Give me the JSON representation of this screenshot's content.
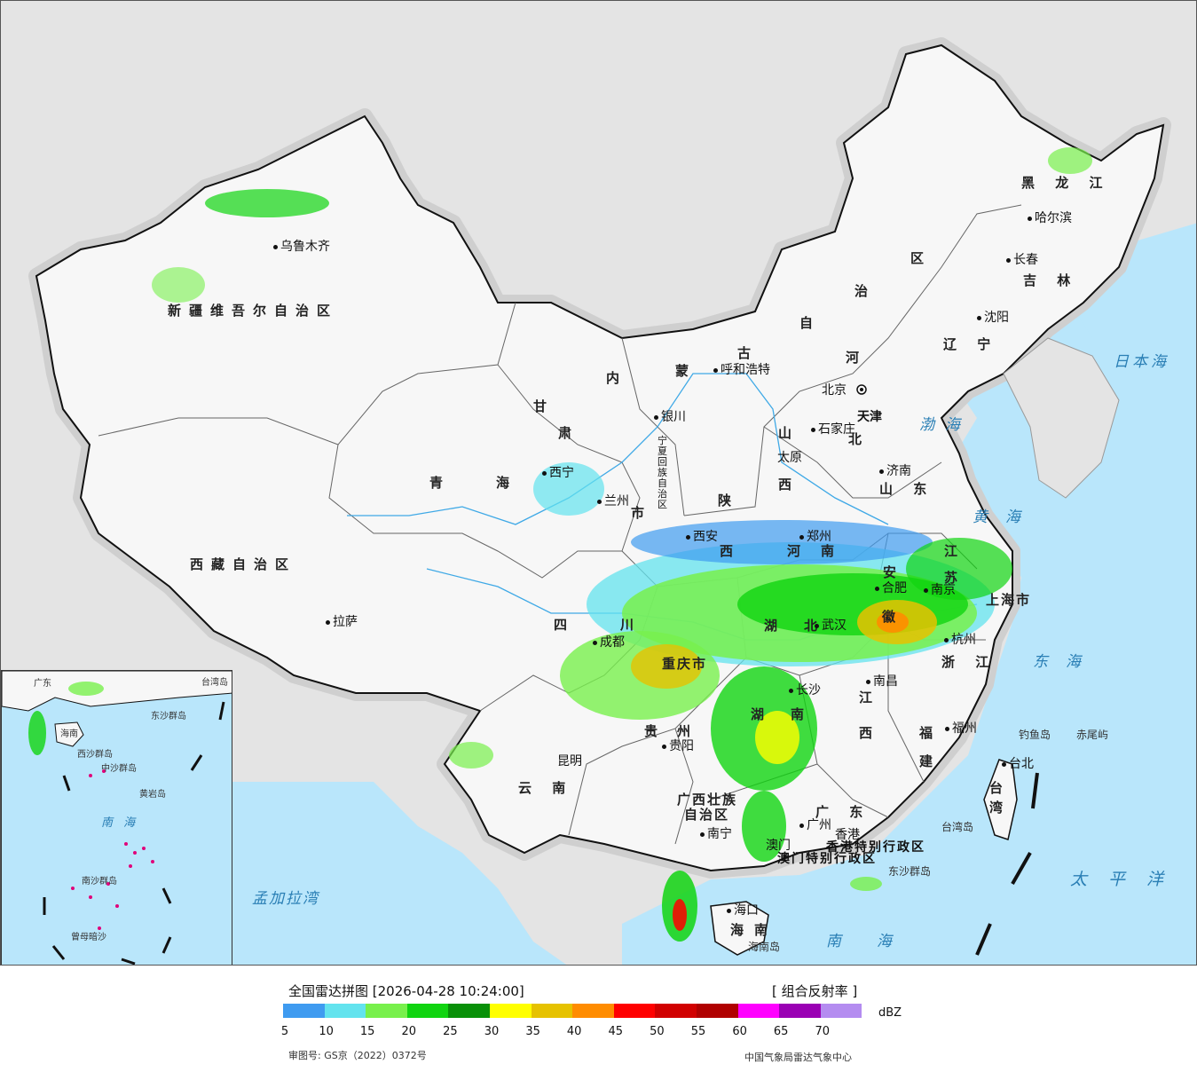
{
  "legend": {
    "title": "全国雷达拼图 [2026-04-28 10:24:00]",
    "product": "[ 组合反射率 ]",
    "unit": "dBZ",
    "colors": [
      "#3f9bf0",
      "#63e3ee",
      "#78f04c",
      "#10d410",
      "#089008",
      "#ffff00",
      "#e6c200",
      "#ff8c00",
      "#ff0000",
      "#d10000",
      "#b00000",
      "#ff00ff",
      "#9a00b4",
      "#b48cf0"
    ],
    "ticks": [
      "5",
      "10",
      "15",
      "20",
      "25",
      "30",
      "35",
      "40",
      "45",
      "50",
      "55",
      "60",
      "65",
      "70"
    ],
    "review_no": "审图号: GS京（2022）0372号",
    "source": "中国气象局雷达气象中心"
  },
  "regions": {
    "xinjiang": "新疆维吾尔自治区",
    "xizang": "西藏自治区",
    "qinghai_a": "青",
    "qinghai_b": "海",
    "gansu_a": "甘",
    "gansu_b": "肃",
    "neimenggu_a": "内",
    "neimenggu_b": "蒙",
    "neimenggu_c": "古",
    "neimenggu_d": "自",
    "neimenggu_e": "治",
    "neimenggu_f": "区",
    "heilongjiang": "黑 龙 江",
    "jilin": "吉 林",
    "liaoning": "辽 宁",
    "hebei_a": "河",
    "hebei_b": "北",
    "shanxi_a": "山",
    "shanxi_b": "西",
    "shandong": "山 东",
    "shaanxi_a": "陕",
    "shaanxi_b": "西",
    "henan_a": "河",
    "henan_b": "南",
    "sichuan_a": "四",
    "sichuan_b": "川",
    "chongqing": "重庆市",
    "hubei_a": "湖",
    "hubei_b": "北",
    "anhui_a": "安",
    "anhui_b": "徽",
    "jiangsu_a": "江",
    "jiangsu_b": "苏",
    "shanghai": "上海市",
    "zhejiang": "浙 江",
    "jiangxi_a": "江",
    "jiangxi_b": "西",
    "hunan_a": "湖",
    "hunan_b": "南",
    "guizhou_a": "贵",
    "guizhou_b": "州",
    "yunnan": "云 南",
    "guangxi_a": "广西壮族",
    "guangxi_b": "自治区",
    "guangdong": "广 东",
    "fujian_a": "福",
    "fujian_b": "建",
    "taiwan_a": "台",
    "taiwan_b": "湾",
    "hainan_a": "海",
    "hainan_b": "南",
    "ningxia": "宁夏回族自治区",
    "hk": "香港特别行政区",
    "macau": "澳门特别行政区",
    "tianjin": "天津",
    "gansu_c": "市"
  },
  "cities": {
    "urumqi": "乌鲁木齐",
    "lhasa": "拉萨",
    "xining": "西宁",
    "lanzhou": "兰州",
    "yinchuan": "银川",
    "hohhot": "呼和浩特",
    "harbin": "哈尔滨",
    "changchun": "长春",
    "shenyang": "沈阳",
    "beijing": "北京",
    "shijiazhuang": "石家庄",
    "taiyuan": "太原",
    "jinan": "济南",
    "xian": "西安",
    "zhengzhou": "郑州",
    "chengdu": "成都",
    "wuhan": "武汉",
    "hefei": "合肥",
    "nanjing": "南京",
    "hangzhou": "杭州",
    "nanchang": "南昌",
    "changsha": "长沙",
    "guiyang": "贵阳",
    "kunming": "昆明",
    "nanning": "南宁",
    "guangzhou": "广州",
    "fuzhou": "福州",
    "taibei": "台北",
    "haikou": "海口",
    "hongkong": "香港",
    "macao": "澳门"
  },
  "seas": {
    "japan_sea": "日本海",
    "bohai": "渤海",
    "yellow_sea": "黄海",
    "east_sea": "东海",
    "pacific": "太平洋",
    "south_sea": "南海",
    "bengal": "孟加拉湾"
  },
  "islands": {
    "diaoyu": "钓鱼岛",
    "chiwei": "赤尾屿",
    "taiwan_island": "台湾岛",
    "dongsha": "东沙群岛",
    "hainan_island": "海南岛"
  },
  "inset": {
    "south_sea": "南 海",
    "dongsha": "东沙群岛",
    "xisha": "西沙群岛",
    "zhongsha": "中沙群岛",
    "nansha": "南沙群岛",
    "huangyan": "黄岩岛",
    "zengmu": "曾母暗沙",
    "hainan": "海南",
    "guangdong": "广东",
    "taiwan": "台湾岛"
  }
}
